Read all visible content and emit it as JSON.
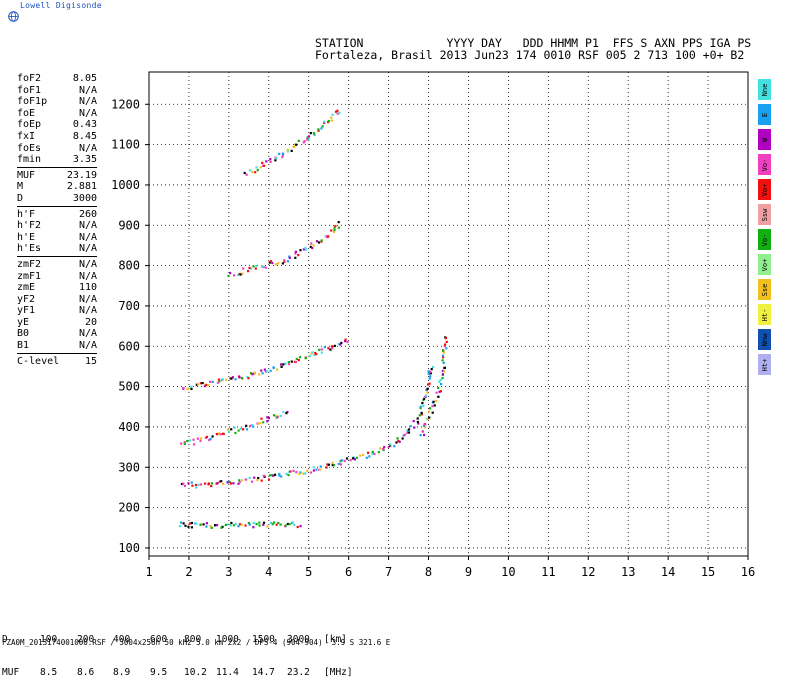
{
  "brand": "Lowell Digisonde",
  "header": {
    "line1": "STATION            YYYY DAY   DDD HHMM P1  FFS S AXN PPS IGA PS",
    "line2": "Fortaleza, Brasil 2013 Jun23 174 0010 RSF 005 2 713 100 +0+ B2"
  },
  "params": [
    [
      {
        "label": "foF2",
        "value": "8.05"
      },
      {
        "label": "foF1",
        "value": "N/A"
      },
      {
        "label": "foF1p",
        "value": "N/A"
      },
      {
        "label": "foE",
        "value": "N/A"
      },
      {
        "label": "foEp",
        "value": "0.43"
      },
      {
        "label": "fxI",
        "value": "8.45"
      },
      {
        "label": "foEs",
        "value": "N/A"
      },
      {
        "label": "fmin",
        "value": "3.35"
      }
    ],
    [
      {
        "label": "MUF",
        "value": "23.19"
      },
      {
        "label": "M",
        "value": "2.881"
      },
      {
        "label": "D",
        "value": "3000"
      }
    ],
    [
      {
        "label": "h'F",
        "value": "260"
      },
      {
        "label": "h'F2",
        "value": "N/A"
      },
      {
        "label": "h'E",
        "value": "N/A"
      },
      {
        "label": "h'Es",
        "value": "N/A"
      }
    ],
    [
      {
        "label": "zmF2",
        "value": "N/A"
      },
      {
        "label": "zmF1",
        "value": "N/A"
      },
      {
        "label": "zmE",
        "value": "110"
      },
      {
        "label": "yF2",
        "value": "N/A"
      },
      {
        "label": "yF1",
        "value": "N/A"
      },
      {
        "label": "yE",
        "value": "20"
      },
      {
        "label": "B0",
        "value": "N/A"
      },
      {
        "label": "B1",
        "value": "N/A"
      }
    ],
    [
      {
        "label": "C-level",
        "value": "15"
      }
    ]
  ],
  "legend": [
    {
      "label": "Nne",
      "color": "#44e0e0"
    },
    {
      "label": "E",
      "color": "#1aa0f0"
    },
    {
      "label": "W",
      "color": "#b000c0"
    },
    {
      "label": "Vo-",
      "color": "#f040c0"
    },
    {
      "label": "Vo+",
      "color": "#f01010"
    },
    {
      "label": "Ssw",
      "color": "#f0a0a0"
    },
    {
      "label": "Vo-",
      "color": "#10b010"
    },
    {
      "label": "Vo+",
      "color": "#90f090"
    },
    {
      "label": "Sse",
      "color": "#f0c020"
    },
    {
      "label": "Ht-",
      "color": "#f0f040"
    },
    {
      "label": "Nnw",
      "color": "#1050b0"
    },
    {
      "label": "Ht+",
      "color": "#b0b0f0"
    }
  ],
  "chart_data": {
    "type": "scatter",
    "title": "",
    "xlabel": "",
    "ylabel": "",
    "xlim": [
      1,
      16
    ],
    "ylim": [
      80,
      1280
    ],
    "xticks": [
      1,
      2,
      3,
      4,
      5,
      6,
      7,
      8,
      9,
      10,
      11,
      12,
      13,
      14,
      15,
      16
    ],
    "yticks": [
      100,
      200,
      300,
      400,
      500,
      600,
      700,
      800,
      900,
      1000,
      1100,
      1200
    ],
    "grid": true,
    "traces": [
      {
        "desc": "F-layer trace",
        "x": [
          1.8,
          2.2,
          3.0,
          4.0,
          5.0,
          6.0,
          6.5,
          7.0,
          7.4,
          7.7,
          7.9,
          8.05
        ],
        "y": [
          262,
          258,
          265,
          277,
          295,
          320,
          335,
          355,
          380,
          420,
          470,
          560
        ]
      },
      {
        "desc": "O-mode extension",
        "x": [
          7.8,
          8.0,
          8.2,
          8.35,
          8.4
        ],
        "y": [
          380,
          430,
          480,
          550,
          630
        ]
      },
      {
        "desc": "second hop",
        "x": [
          1.8,
          2.5,
          3.5,
          4.5,
          5.5,
          6.0
        ],
        "y": [
          500,
          510,
          530,
          560,
          600,
          620
        ]
      },
      {
        "desc": "third hop",
        "x": [
          3.0,
          3.8,
          4.5,
          5.5,
          5.8
        ],
        "y": [
          780,
          800,
          820,
          880,
          910
        ]
      },
      {
        "desc": "fourth hop",
        "x": [
          3.4,
          4.0,
          4.8,
          5.5,
          5.8
        ],
        "y": [
          1030,
          1060,
          1110,
          1160,
          1190
        ]
      },
      {
        "desc": "low echoes",
        "x": [
          1.7,
          2.5,
          3.5,
          4.5,
          4.8
        ],
        "y": [
          160,
          158,
          160,
          162,
          160
        ]
      },
      {
        "desc": "spread echoes",
        "x": [
          1.8,
          2.3,
          3.0,
          3.6,
          4.5
        ],
        "y": [
          360,
          370,
          390,
          410,
          440
        ]
      }
    ]
  },
  "bottom_table": {
    "d_label": "D",
    "d_values": [
      "100",
      "200",
      "400",
      "600",
      "800",
      "1000",
      "1500",
      "3000"
    ],
    "d_unit": "[km]",
    "muf_label": "MUF",
    "muf_values": [
      "8.5",
      "8.6",
      "8.9",
      "9.5",
      "10.2",
      "11.4",
      "14.7",
      "23.2"
    ],
    "muf_unit": "[MHz]"
  },
  "footer": "FZA0M_2013174001000.RSF / 3004x256h 50 kHz 5.0 km 2x2 / DPS-4 (904-904)  3.9 S 321.6 E"
}
